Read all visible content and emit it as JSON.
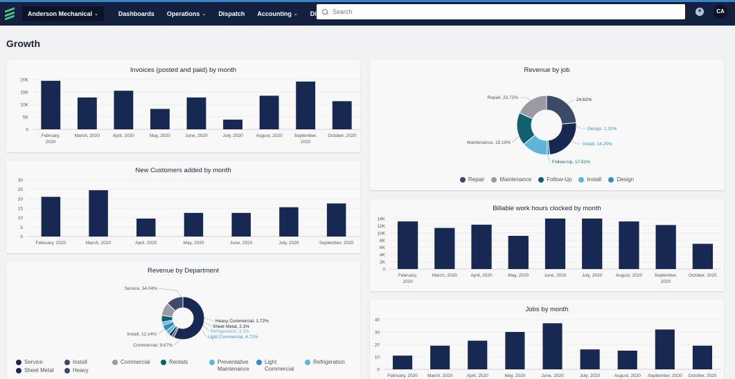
{
  "header": {
    "company": "Anderson Mechanical",
    "nav": [
      {
        "label": "Dashboards",
        "has_menu": false
      },
      {
        "label": "Operations",
        "has_menu": true
      },
      {
        "label": "Dispatch",
        "has_menu": false
      },
      {
        "label": "Accounting",
        "has_menu": true
      },
      {
        "label": "Directory",
        "has_menu": true
      }
    ],
    "search_placeholder": "Search",
    "add_label": "+",
    "avatar": "CA"
  },
  "page": {
    "title": "Growth"
  },
  "colors": {
    "navy": "#172952",
    "gray": "#9a9aa6",
    "slate": "#3b4a66",
    "teal": "#11606f",
    "light_blue": "#5fb5d9",
    "blue": "#2e8fc4",
    "accent": "#3d82c4"
  },
  "chart_data": [
    {
      "id": "invoices",
      "type": "bar",
      "title": "Invoices (posted and paid) by month",
      "categories": [
        "February, 2020",
        "March, 2020",
        "April, 2020",
        "May, 2020",
        "June, 2020",
        "July, 2020",
        "August, 2020",
        "September, 2020",
        "October, 2020"
      ],
      "values": [
        19500,
        12800,
        15500,
        8200,
        12800,
        3900,
        13500,
        19200,
        11300
      ],
      "yticks": [
        "0",
        "5K",
        "10K",
        "15K",
        "20K"
      ],
      "ylim": [
        0,
        20000
      ]
    },
    {
      "id": "new_customers",
      "type": "bar",
      "title": "New Customers added by month",
      "categories": [
        "February, 2020",
        "March, 2020",
        "April, 2020",
        "May, 2020",
        "June, 2020",
        "July, 2020",
        "September, 2020"
      ],
      "values": [
        21,
        24.5,
        9.5,
        12.5,
        12.5,
        15.5,
        17.5
      ],
      "yticks": [
        "0",
        "5",
        "10",
        "15",
        "20",
        "25",
        "30"
      ],
      "ylim": [
        0,
        30
      ]
    },
    {
      "id": "revenue_by_department",
      "type": "pie",
      "title": "Revenue by Department",
      "slices": [
        {
          "name": "Service",
          "value": 54.04,
          "label": "Service, 54.04%",
          "color": "#172952"
        },
        {
          "name": "Heavy Commercial",
          "value": 1.72,
          "label": "Heavy Commercial, 1.72%",
          "color": "#3b4a66"
        },
        {
          "name": "Sheet Metal",
          "value": 2.3,
          "label": "Sheet Metal, 2.3%",
          "color": "#172952"
        },
        {
          "name": "Refrigeration",
          "value": 3.1,
          "label": "Refrigeration, 3.1%",
          "color": "#5fb5d9"
        },
        {
          "name": "Light Commercial",
          "value": 4.72,
          "label": "Light Commercial, 4.72%",
          "color": "#2e8fc4"
        },
        {
          "name": "Preventative Maintenance",
          "value": 2.3,
          "label": "",
          "color": "#5fb5d9"
        },
        {
          "name": "Rentals",
          "value": 4.8,
          "label": "",
          "color": "#11606f"
        },
        {
          "name": "Commercial",
          "value": 9.67,
          "label": "Commercial, 9.67%",
          "color": "#9a9aa6"
        },
        {
          "name": "Install",
          "value": 12.14,
          "label": "Install, 12.14%",
          "color": "#3b4a66"
        }
      ],
      "legend": [
        {
          "name": "Service",
          "color": "#172952"
        },
        {
          "name": "Install",
          "color": "#3b4a66"
        },
        {
          "name": "Commercial",
          "color": "#9a9aa6"
        },
        {
          "name": "Rentals",
          "color": "#11606f"
        },
        {
          "name": "Preventative Maintenance",
          "color": "#5fb5d9"
        },
        {
          "name": "Light Commercial",
          "color": "#2e8fc4"
        },
        {
          "name": "Refrigeration",
          "color": "#5fb5d9"
        },
        {
          "name": "Sheet Metal",
          "color": "#172952"
        },
        {
          "name": "Heavy",
          "color": "#3b4a66"
        }
      ]
    },
    {
      "id": "revenue_by_job",
      "type": "pie",
      "title": "Revenue by job",
      "slices": [
        {
          "name": "Repair",
          "value": 23.72,
          "label": "Repair, 23.72%",
          "color": "#3b4a66"
        },
        {
          "name": "Unlabeled",
          "value": 24.62,
          "label": "24.62%",
          "color": "#172952"
        },
        {
          "name": "Design",
          "value": 1.31,
          "label": "Design, 1.31%",
          "color": "#2e8fc4"
        },
        {
          "name": "Install",
          "value": 14.25,
          "label": "Install, 14.25%",
          "color": "#5fb5d9"
        },
        {
          "name": "Follow-Up",
          "value": 17.91,
          "label": "Follow-Up, 17.91%",
          "color": "#11606f"
        },
        {
          "name": "Maintenance",
          "value": 18.19,
          "label": "Maintenance, 18.19%",
          "color": "#9a9aa6"
        }
      ],
      "legend": [
        {
          "name": "Repair",
          "color": "#3b4a66"
        },
        {
          "name": "Maintenance",
          "color": "#9a9aa6"
        },
        {
          "name": "Follow-Up",
          "color": "#11606f"
        },
        {
          "name": "Install",
          "color": "#5fb5d9"
        },
        {
          "name": "Design",
          "color": "#2e8fc4"
        }
      ]
    },
    {
      "id": "billable_hours",
      "type": "bar",
      "title": "Billable work hours clocked by month",
      "categories": [
        "February, 2020",
        "March, 2020",
        "April, 2020",
        "May, 2020",
        "June, 2020",
        "July, 2020",
        "August, 2020",
        "September, 2020",
        "October, 2020"
      ],
      "values": [
        13200,
        11400,
        12300,
        9200,
        14000,
        14000,
        13200,
        12200,
        7000
      ],
      "yticks": [
        "0",
        "2K",
        "4K",
        "6K",
        "8K",
        "10K",
        "12K",
        "14K"
      ],
      "ylim": [
        0,
        14000
      ]
    },
    {
      "id": "jobs_by_month",
      "type": "bar",
      "title": "Jobs by month",
      "categories": [
        "February, 2020",
        "March, 2020",
        "April, 2020",
        "May, 2020",
        "June, 2020",
        "July, 2020",
        "August, 2020",
        "September, 2020",
        "October, 2020"
      ],
      "values": [
        11,
        19,
        23,
        30,
        37,
        16,
        15,
        32,
        19
      ],
      "yticks": [
        "0",
        "10",
        "20",
        "30",
        "40"
      ],
      "ylim": [
        0,
        40
      ]
    }
  ]
}
